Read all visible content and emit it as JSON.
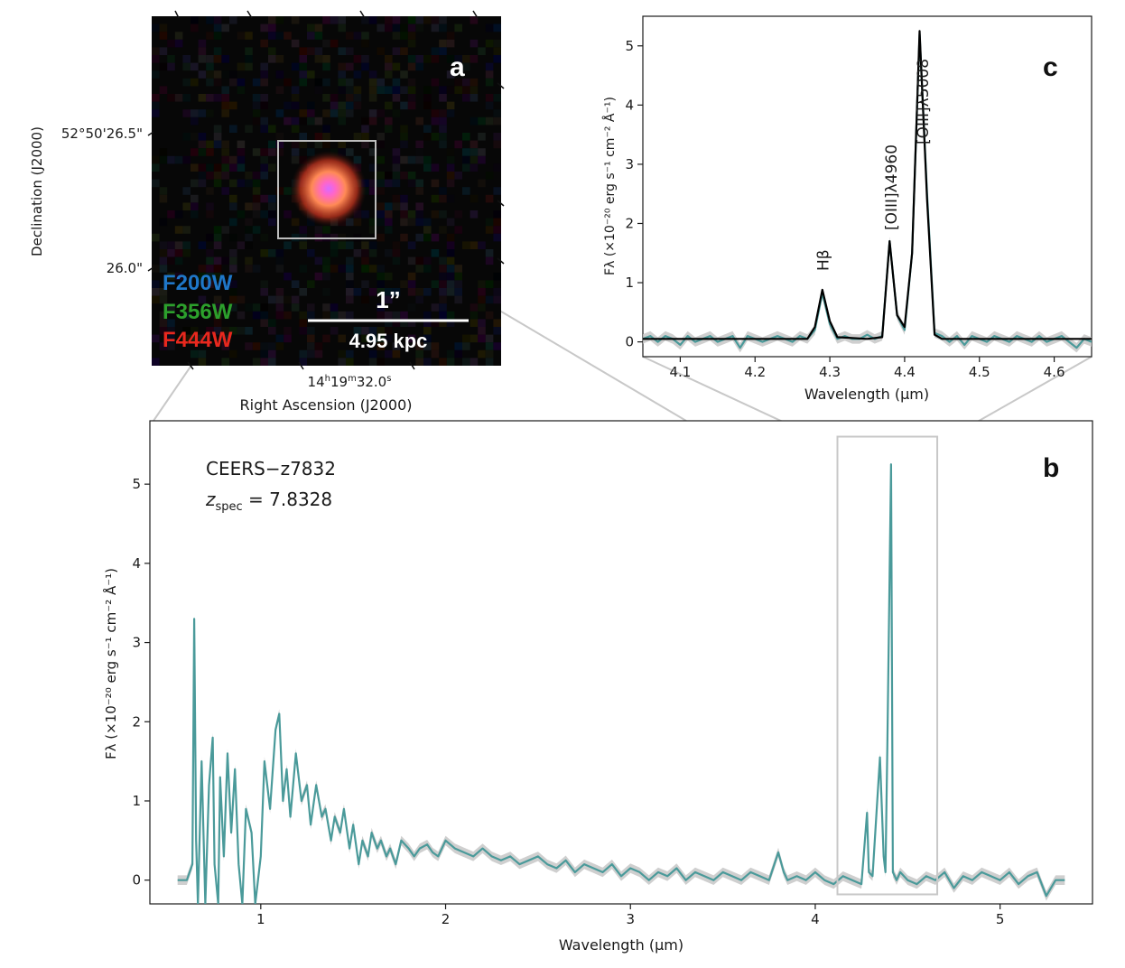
{
  "panel_a": {
    "label": "a",
    "dec_label": "Declination (J2000)",
    "ra_label": "Right Ascension (J2000)",
    "dec_ticks": [
      "52°50'26.5\"",
      "26.0\""
    ],
    "ra_tick": {
      "h": "14",
      "hs": "h",
      "m": "19",
      "ms": "m",
      "s": "32.0",
      "ss": "s"
    },
    "filters": [
      {
        "name": "F200W",
        "color": "#1f77c8"
      },
      {
        "name": "F356W",
        "color": "#2ca02c"
      },
      {
        "name": "F444W",
        "color": "#e8281e"
      }
    ],
    "scale_top": "1”",
    "scale_bottom": "4.95 kpc"
  },
  "panel_b": {
    "label": "b",
    "object": "CEERS−z7832",
    "z_sym": "z",
    "z_sub": "spec",
    "z_value": " = 7.8328"
  },
  "panel_c": {
    "label": "c",
    "lines": [
      {
        "name": "Hβ",
        "wavelength": 4.291
      },
      {
        "name": "[OIII]λ4960",
        "wavelength": 4.382
      },
      {
        "name": "[OIII]λ5008",
        "wavelength": 4.424
      }
    ]
  },
  "chart_data": [
    {
      "id": "b",
      "type": "line",
      "xlabel": "Wavelength (μm)",
      "ylabel": "Fλ (×10⁻²⁰ erg s⁻¹ cm⁻² Å⁻¹)",
      "xlim": [
        0.4,
        5.5
      ],
      "ylim": [
        -0.3,
        5.8
      ],
      "xticks": [
        1,
        2,
        3,
        4,
        5
      ],
      "yticks": [
        0,
        1,
        2,
        3,
        4,
        5
      ],
      "line_color": "#4a9a9a",
      "band_color": "#c7c7c7",
      "x": [
        0.55,
        0.6,
        0.63,
        0.64,
        0.65,
        0.66,
        0.68,
        0.7,
        0.72,
        0.74,
        0.75,
        0.77,
        0.78,
        0.8,
        0.82,
        0.84,
        0.86,
        0.88,
        0.9,
        0.92,
        0.95,
        0.97,
        1.0,
        1.02,
        1.05,
        1.08,
        1.1,
        1.12,
        1.14,
        1.16,
        1.19,
        1.22,
        1.25,
        1.27,
        1.3,
        1.33,
        1.35,
        1.38,
        1.4,
        1.43,
        1.45,
        1.48,
        1.5,
        1.53,
        1.55,
        1.58,
        1.6,
        1.63,
        1.65,
        1.68,
        1.7,
        1.73,
        1.76,
        1.8,
        1.83,
        1.86,
        1.9,
        1.93,
        1.96,
        2.0,
        2.05,
        2.1,
        2.15,
        2.2,
        2.25,
        2.3,
        2.35,
        2.4,
        2.45,
        2.5,
        2.55,
        2.6,
        2.65,
        2.7,
        2.75,
        2.8,
        2.85,
        2.9,
        2.95,
        3.0,
        3.05,
        3.1,
        3.15,
        3.2,
        3.25,
        3.3,
        3.35,
        3.4,
        3.45,
        3.5,
        3.55,
        3.6,
        3.65,
        3.7,
        3.75,
        3.8,
        3.83,
        3.85,
        3.9,
        3.95,
        4.0,
        4.05,
        4.1,
        4.15,
        4.2,
        4.25,
        4.28,
        4.29,
        4.31,
        4.35,
        4.37,
        4.38,
        4.39,
        4.41,
        4.42,
        4.43,
        4.44,
        4.46,
        4.5,
        4.55,
        4.6,
        4.65,
        4.7,
        4.75,
        4.8,
        4.85,
        4.9,
        4.95,
        5.0,
        5.05,
        5.1,
        5.15,
        5.2,
        5.25,
        5.3,
        5.35
      ],
      "y": [
        0.0,
        0.0,
        0.2,
        3.3,
        0.5,
        -0.3,
        1.5,
        -0.3,
        1.2,
        1.8,
        0.2,
        -0.3,
        1.3,
        0.3,
        1.6,
        0.6,
        1.4,
        0.2,
        -0.3,
        0.9,
        0.6,
        -0.3,
        0.3,
        1.5,
        0.9,
        1.9,
        2.1,
        1.0,
        1.4,
        0.8,
        1.6,
        1.0,
        1.2,
        0.7,
        1.2,
        0.8,
        0.9,
        0.5,
        0.8,
        0.6,
        0.9,
        0.4,
        0.7,
        0.2,
        0.5,
        0.3,
        0.6,
        0.4,
        0.5,
        0.3,
        0.4,
        0.2,
        0.5,
        0.4,
        0.3,
        0.4,
        0.45,
        0.35,
        0.3,
        0.5,
        0.4,
        0.35,
        0.3,
        0.4,
        0.3,
        0.25,
        0.3,
        0.2,
        0.25,
        0.3,
        0.2,
        0.15,
        0.25,
        0.1,
        0.2,
        0.15,
        0.1,
        0.2,
        0.05,
        0.15,
        0.1,
        0.0,
        0.1,
        0.05,
        0.15,
        0.0,
        0.1,
        0.05,
        0.0,
        0.1,
        0.05,
        0.0,
        0.1,
        0.05,
        0.0,
        0.35,
        0.1,
        0.0,
        0.05,
        0.0,
        0.1,
        0.0,
        -0.05,
        0.05,
        0.0,
        -0.05,
        0.85,
        0.1,
        0.05,
        1.55,
        0.3,
        0.1,
        1.7,
        5.25,
        0.1,
        0.05,
        0.0,
        0.1,
        0.0,
        -0.05,
        0.05,
        0.0,
        0.1,
        -0.1,
        0.05,
        0.0,
        0.1,
        0.05,
        0.0,
        0.1,
        -0.05,
        0.05,
        0.1,
        -0.2,
        0.0,
        0.0
      ],
      "annotation_box": {
        "x": [
          4.12,
          4.66
        ],
        "y": [
          -0.18,
          5.6
        ]
      }
    },
    {
      "id": "c",
      "type": "line",
      "xlabel": "Wavelength (μm)",
      "ylabel": "Fλ (×10⁻²⁰ erg s⁻¹ cm⁻² Å⁻¹)",
      "xlim": [
        4.05,
        4.65
      ],
      "ylim": [
        -0.25,
        5.5
      ],
      "xticks": [
        4.1,
        4.2,
        4.3,
        4.4,
        4.5,
        4.6
      ],
      "yticks": [
        0,
        1,
        2,
        3,
        4,
        5
      ],
      "series": [
        {
          "name": "data",
          "color": "#4a9a9a",
          "x": [
            4.05,
            4.06,
            4.07,
            4.08,
            4.09,
            4.1,
            4.11,
            4.12,
            4.13,
            4.14,
            4.15,
            4.16,
            4.17,
            4.18,
            4.19,
            4.2,
            4.21,
            4.22,
            4.23,
            4.24,
            4.25,
            4.26,
            4.27,
            4.28,
            4.29,
            4.3,
            4.31,
            4.32,
            4.33,
            4.34,
            4.35,
            4.36,
            4.37,
            4.38,
            4.39,
            4.4,
            4.41,
            4.42,
            4.43,
            4.44,
            4.45,
            4.46,
            4.47,
            4.48,
            4.49,
            4.5,
            4.51,
            4.52,
            4.53,
            4.54,
            4.55,
            4.56,
            4.57,
            4.58,
            4.59,
            4.6,
            4.61,
            4.62,
            4.63,
            4.64,
            4.65
          ],
          "y": [
            0.05,
            0.1,
            0.0,
            0.1,
            0.05,
            -0.05,
            0.1,
            0.0,
            0.05,
            0.1,
            0.0,
            0.05,
            0.1,
            -0.1,
            0.1,
            0.05,
            0.0,
            0.05,
            0.1,
            0.05,
            0.0,
            0.1,
            0.05,
            0.2,
            0.82,
            0.3,
            0.05,
            0.1,
            0.05,
            0.05,
            0.12,
            0.05,
            0.1,
            1.7,
            0.45,
            0.2,
            1.5,
            5.2,
            2.5,
            0.15,
            0.1,
            0.0,
            0.1,
            -0.05,
            0.1,
            0.05,
            0.0,
            0.1,
            0.05,
            0.0,
            0.1,
            0.05,
            0.0,
            0.1,
            0.0,
            0.05,
            0.1,
            0.0,
            -0.1,
            0.05,
            0.0
          ]
        },
        {
          "name": "model",
          "color": "#000000",
          "x": [
            4.05,
            4.27,
            4.28,
            4.29,
            4.3,
            4.31,
            4.35,
            4.37,
            4.38,
            4.39,
            4.4,
            4.41,
            4.42,
            4.43,
            4.44,
            4.45,
            4.65
          ],
          "y": [
            0.05,
            0.05,
            0.25,
            0.88,
            0.35,
            0.08,
            0.05,
            0.08,
            1.7,
            0.45,
            0.25,
            1.5,
            5.25,
            2.4,
            0.12,
            0.05,
            0.05
          ]
        }
      ]
    }
  ]
}
